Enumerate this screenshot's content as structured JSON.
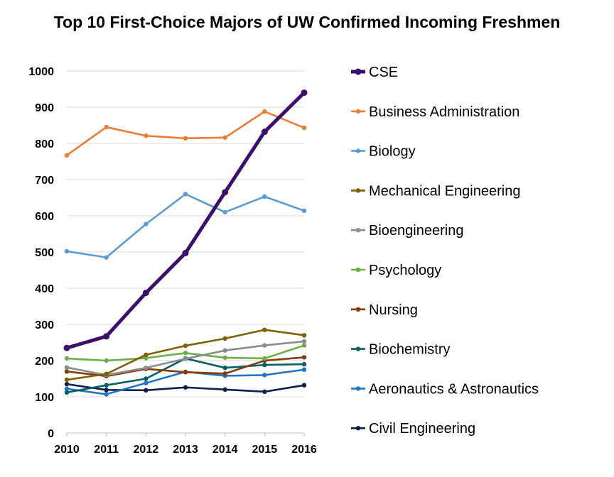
{
  "chart_data": {
    "type": "line",
    "title": "Top 10 First-Choice Majors of UW Confirmed Incoming Freshmen",
    "xlabel": "",
    "ylabel": "",
    "x": [
      "2010",
      "2011",
      "2012",
      "2013",
      "2014",
      "2015",
      "2016"
    ],
    "ylim": [
      0,
      1000
    ],
    "yticks": [
      0,
      100,
      200,
      300,
      400,
      500,
      600,
      700,
      800,
      900,
      1000
    ],
    "grid": true,
    "legend_position": "right",
    "series": [
      {
        "name": "CSE",
        "color": "#3b0f6e",
        "emphasis": true,
        "values": [
          235,
          267,
          387,
          497,
          665,
          832,
          940
        ]
      },
      {
        "name": "Business Administration",
        "color": "#ed7d31",
        "values": [
          767,
          845,
          821,
          814,
          816,
          888,
          843
        ]
      },
      {
        "name": "Biology",
        "color": "#5b9bd5",
        "values": [
          502,
          485,
          577,
          660,
          610,
          653,
          614
        ]
      },
      {
        "name": "Mechanical Engineering",
        "color": "#7f6000",
        "values": [
          147,
          163,
          216,
          241,
          261,
          285,
          270
        ]
      },
      {
        "name": "Bioengineering",
        "color": "#8c8c8c",
        "values": [
          181,
          160,
          180,
          205,
          228,
          242,
          253
        ]
      },
      {
        "name": "Psychology",
        "color": "#70ad47",
        "values": [
          206,
          200,
          207,
          221,
          208,
          206,
          242
        ]
      },
      {
        "name": "Nursing",
        "color": "#843c0c",
        "values": [
          170,
          157,
          177,
          168,
          164,
          200,
          209
        ]
      },
      {
        "name": "Biochemistry",
        "color": "#006064",
        "values": [
          112,
          132,
          150,
          206,
          180,
          188,
          190
        ]
      },
      {
        "name": "Aeronautics & Astronautics",
        "color": "#1f77c4",
        "values": [
          122,
          107,
          138,
          169,
          158,
          160,
          175
        ]
      },
      {
        "name": "Civil Engineering",
        "color": "#0d1f4d",
        "values": [
          135,
          119,
          118,
          126,
          120,
          114,
          132
        ]
      }
    ]
  }
}
